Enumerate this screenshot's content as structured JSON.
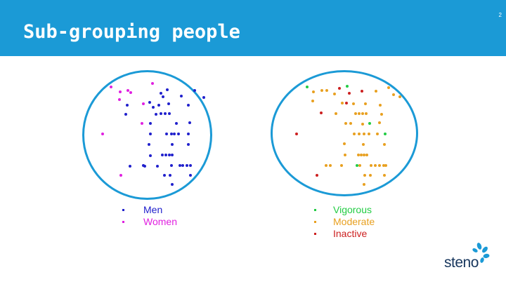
{
  "header": {
    "title": "Sub-grouping people",
    "slide_number": "2",
    "background_color": "#1b9ad6"
  },
  "colors": {
    "men": "#2020cc",
    "women": "#e020e0",
    "vigorous": "#22cc44",
    "moderate": "#e8a020",
    "inactive": "#cc2020"
  },
  "legend_left": [
    {
      "label": "Men",
      "color": "#2020cc"
    },
    {
      "label": "Women",
      "color": "#e020e0"
    }
  ],
  "legend_right": [
    {
      "label": "Vigorous",
      "color": "#22cc44"
    },
    {
      "label": "Moderate",
      "color": "#e8a020"
    },
    {
      "label": "Inactive",
      "color": "#cc2020"
    }
  ],
  "logo": {
    "text": "steno",
    "icon": "steno-flower-icon"
  }
}
